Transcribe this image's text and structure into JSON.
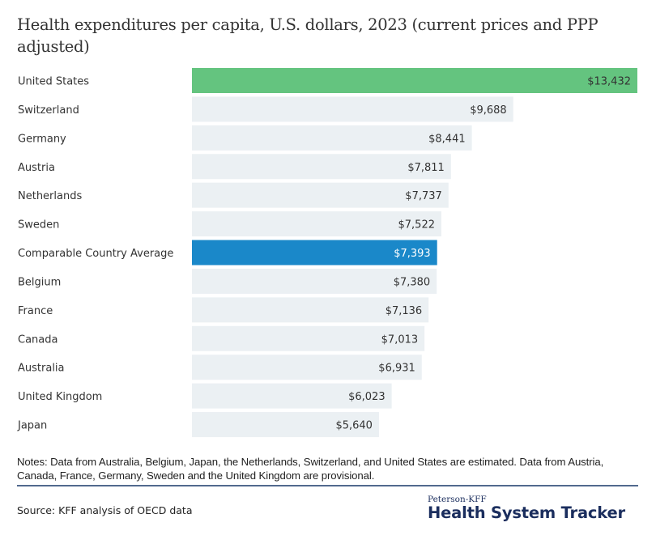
{
  "chart_data": {
    "type": "bar",
    "orientation": "horizontal",
    "title": "Health expenditures per capita, U.S. dollars, 2023 (current prices and PPP adjusted)",
    "xlabel": "",
    "ylabel": "",
    "grid": false,
    "xlim": [
      0,
      13432
    ],
    "categories": [
      "United States",
      "Switzerland",
      "Germany",
      "Austria",
      "Netherlands",
      "Sweden",
      "Comparable Country Average",
      "Belgium",
      "France",
      "Canada",
      "Australia",
      "United Kingdom",
      "Japan"
    ],
    "values": [
      13432,
      9688,
      8441,
      7811,
      7737,
      7522,
      7393,
      7380,
      7136,
      7013,
      6931,
      6023,
      5640
    ],
    "labels": [
      "$13,432",
      "$9,688",
      "$8,441",
      "$7,811",
      "$7,737",
      "$7,522",
      "$7,393",
      "$7,380",
      "$7,136",
      "$7,013",
      "$6,931",
      "$6,023",
      "$5,640"
    ],
    "highlight": {
      "United States": "#64c47f",
      "Comparable Country Average": "#1a88c9"
    },
    "default_color": "#ebf0f3",
    "label_colors": {
      "default": "#333333",
      "Comparable Country Average": "#ffffff"
    }
  },
  "notes": "Notes: Data from Australia, Belgium, Japan, the Netherlands, Switzerland, and United States are estimated. Data from Austria, Canada, France, Germany, Sweden and the United Kingdom are provisional.",
  "source": "Source: KFF analysis of OECD data",
  "logo": {
    "top": "Peterson-KFF",
    "main": "Health System Tracker"
  }
}
